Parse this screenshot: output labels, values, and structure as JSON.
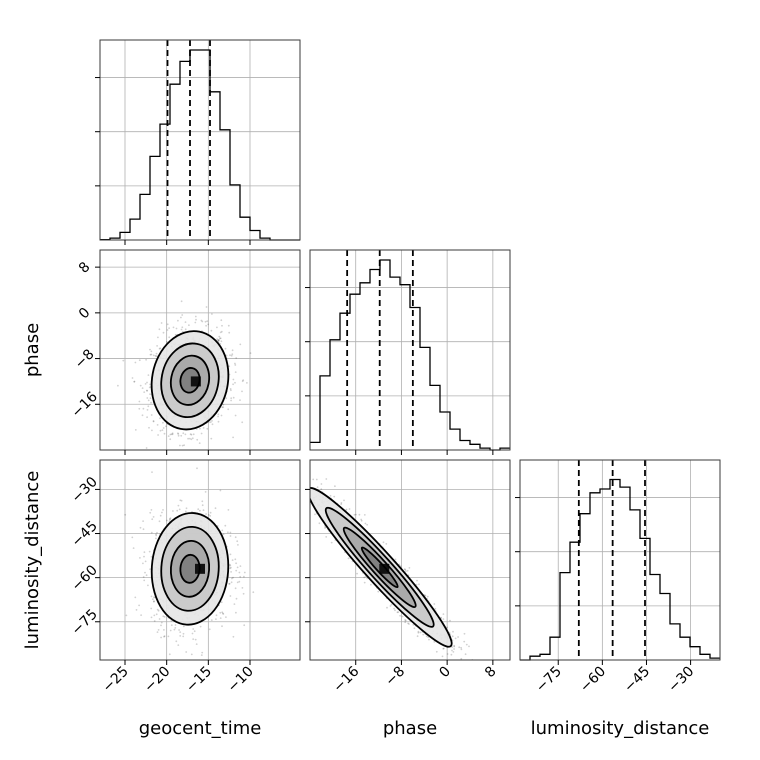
{
  "chart_data": {
    "type": "corner",
    "parameters": [
      "geocent_time",
      "phase",
      "luminosity_distance"
    ],
    "grid": true,
    "ranges": {
      "geocent_time": [
        -28,
        -4
      ],
      "phase": [
        -24,
        11
      ],
      "luminosity_distance": [
        -88,
        -20
      ]
    },
    "ticks": {
      "geocent_time": [
        -25,
        -20,
        -15,
        -10
      ],
      "phase": [
        -16,
        -8,
        0,
        8
      ],
      "luminosity_distance": [
        -75,
        -60,
        -45,
        -30
      ]
    },
    "tick_labels": {
      "geocent_time": [
        "−25",
        "−20",
        "−15",
        "−10"
      ],
      "phase": [
        "−16",
        "−8",
        "0",
        "8"
      ],
      "luminosity_distance": [
        "−75",
        "−60",
        "−45",
        "−30"
      ]
    },
    "marginals": [
      {
        "parameter": "geocent_time",
        "quantiles": [
          -19.9,
          -17.2,
          -14.8
        ],
        "bin_edges": [
          -28,
          -26.8,
          -25.6,
          -24.4,
          -23.2,
          -22.0,
          -20.8,
          -19.6,
          -18.4,
          -17.2,
          -16.0,
          -14.8,
          -13.6,
          -12.4,
          -11.2,
          -10.0,
          -8.8,
          -7.6,
          -6.4,
          -5.2,
          -4.0
        ],
        "counts": [
          0.002,
          0.01,
          0.04,
          0.11,
          0.24,
          0.44,
          0.61,
          0.82,
          0.94,
          1.0,
          1.0,
          0.78,
          0.58,
          0.29,
          0.12,
          0.05,
          0.01,
          0.0,
          0.0,
          0.0
        ]
      },
      {
        "parameter": "phase",
        "quantiles": [
          -17.5,
          -11.8,
          -6.0
        ],
        "bin_edges": [
          -24.0,
          -22.25,
          -20.5,
          -18.75,
          -17.0,
          -15.25,
          -13.5,
          -11.75,
          -10.0,
          -8.25,
          -6.5,
          -4.75,
          -3.0,
          -1.25,
          0.5,
          2.25,
          4.0,
          5.75,
          7.5,
          9.25,
          11.0
        ],
        "counts": [
          0.04,
          0.39,
          0.58,
          0.72,
          0.82,
          0.88,
          0.95,
          1.0,
          0.91,
          0.87,
          0.75,
          0.54,
          0.34,
          0.2,
          0.11,
          0.05,
          0.03,
          0.01,
          0.0,
          0.01
        ]
      },
      {
        "parameter": "luminosity_distance",
        "quantiles": [
          -68.0,
          -56.5,
          -45.5
        ],
        "bin_edges": [
          -88.0,
          -84.6,
          -81.2,
          -77.8,
          -74.4,
          -71.0,
          -67.6,
          -64.2,
          -60.8,
          -57.4,
          -54.0,
          -50.6,
          -47.2,
          -43.8,
          -40.4,
          -37.0,
          -33.6,
          -30.2,
          -26.8,
          -23.4,
          -20.0
        ],
        "counts": [
          0.0,
          0.02,
          0.03,
          0.12,
          0.46,
          0.62,
          0.77,
          0.88,
          0.9,
          0.95,
          0.91,
          0.79,
          0.64,
          0.45,
          0.35,
          0.19,
          0.12,
          0.07,
          0.03,
          0.01
        ]
      }
    ],
    "joint_2d": [
      {
        "x": "geocent_time",
        "y": "phase",
        "mean": [
          -17.2,
          -11.8
        ],
        "std": [
          2.3,
          4.3
        ],
        "corr": 0.1,
        "peak": [
          -16.5,
          -12.0
        ]
      },
      {
        "x": "geocent_time",
        "y": "luminosity_distance",
        "mean": [
          -17.2,
          -57.0
        ],
        "std": [
          2.3,
          9.5
        ],
        "corr": 0.05,
        "peak": [
          -16.0,
          -57.0
        ]
      },
      {
        "x": "phase",
        "y": "luminosity_distance",
        "mean": [
          -11.8,
          -56.5
        ],
        "std": [
          6.3,
          13.5
        ],
        "corr": -0.96,
        "peak": [
          -11.0,
          -57.0
        ]
      }
    ],
    "contour_levels_sigma": [
      0.5,
      1.0,
      1.5,
      2.0
    ]
  }
}
